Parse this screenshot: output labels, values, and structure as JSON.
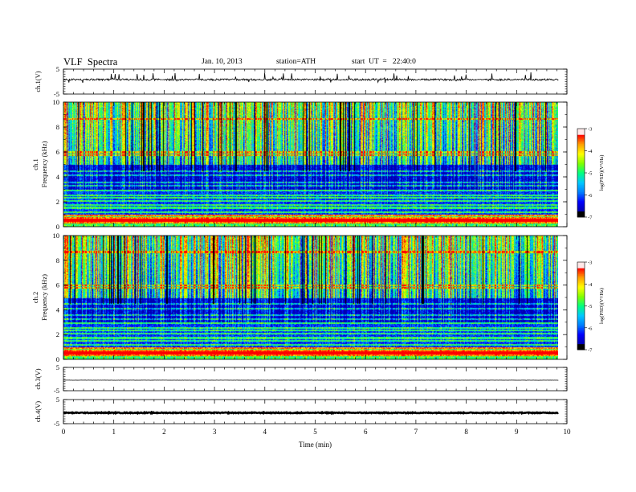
{
  "header": {
    "title": "VLF  Spectra",
    "date": "Jan. 10, 2013",
    "station": "station=ATH",
    "start_ut": "start  UT  =   22:40:0"
  },
  "colors": {
    "background": "#ffffff",
    "axes": "#000000",
    "colormap": [
      "#000000",
      "#0000b0",
      "#0000ff",
      "#0080ff",
      "#00c8ff",
      "#00ff80",
      "#80ff00",
      "#ffff00",
      "#ffa000",
      "#ff0000",
      "#ffffff"
    ]
  },
  "chart_data": [
    {
      "panel": "ch1-waveform",
      "type": "line",
      "ylabel": "ch.1(V)",
      "ylim": [
        -5,
        5
      ],
      "yticks": [
        "5",
        "-5"
      ],
      "xlim": [
        0,
        10
      ],
      "baseline_v": 0.8,
      "spike_amplitude_v": 2.5,
      "data_end_min": 9.83
    },
    {
      "panel": "ch1-spectrogram",
      "type": "heatmap",
      "ylabel": "Frequency  (kHz)",
      "channel_label": "ch.1",
      "ylim": [
        0,
        10
      ],
      "yticks": [
        "0",
        "2",
        "4",
        "6",
        "8",
        "10"
      ],
      "xlim": [
        0,
        10
      ],
      "data_end_min": 9.83,
      "colorbar": {
        "label": "log(PSD)(V²/Hz)",
        "range": [
          -7,
          -3
        ],
        "ticks": [
          "-3",
          "-4",
          "-5",
          "-6",
          "-7"
        ]
      }
    },
    {
      "panel": "ch2-spectrogram",
      "type": "heatmap",
      "ylabel": "Frequency  (kHz)",
      "channel_label": "ch.2",
      "ylim": [
        0,
        10
      ],
      "yticks": [
        "0",
        "2",
        "4",
        "6",
        "8",
        "10"
      ],
      "xlim": [
        0,
        10
      ],
      "data_end_min": 9.83,
      "colorbar": {
        "label": "log(PSD)(V²/Hz)",
        "range": [
          -7,
          -3
        ],
        "ticks": [
          "-3",
          "-4",
          "-5",
          "-6",
          "-7"
        ]
      }
    },
    {
      "panel": "ch3-waveform",
      "type": "line",
      "ylabel": "ch.3(V)",
      "ylim": [
        -5,
        5
      ],
      "yticks": [
        "5",
        "-5"
      ],
      "xlim": [
        0,
        10
      ],
      "baseline_v": -0.5,
      "data_end_min": 9.83
    },
    {
      "panel": "ch4-waveform",
      "type": "line",
      "ylabel": "ch.4(V)",
      "ylim": [
        -5,
        5
      ],
      "yticks": [
        "5",
        "-5"
      ],
      "xlim": [
        0,
        10
      ],
      "baseline_v": -0.5,
      "data_end_min": 9.83,
      "xlabel": "Time  (min)",
      "xticks": [
        "0",
        "1",
        "2",
        "3",
        "4",
        "5",
        "6",
        "7",
        "8",
        "9",
        "10"
      ]
    }
  ]
}
